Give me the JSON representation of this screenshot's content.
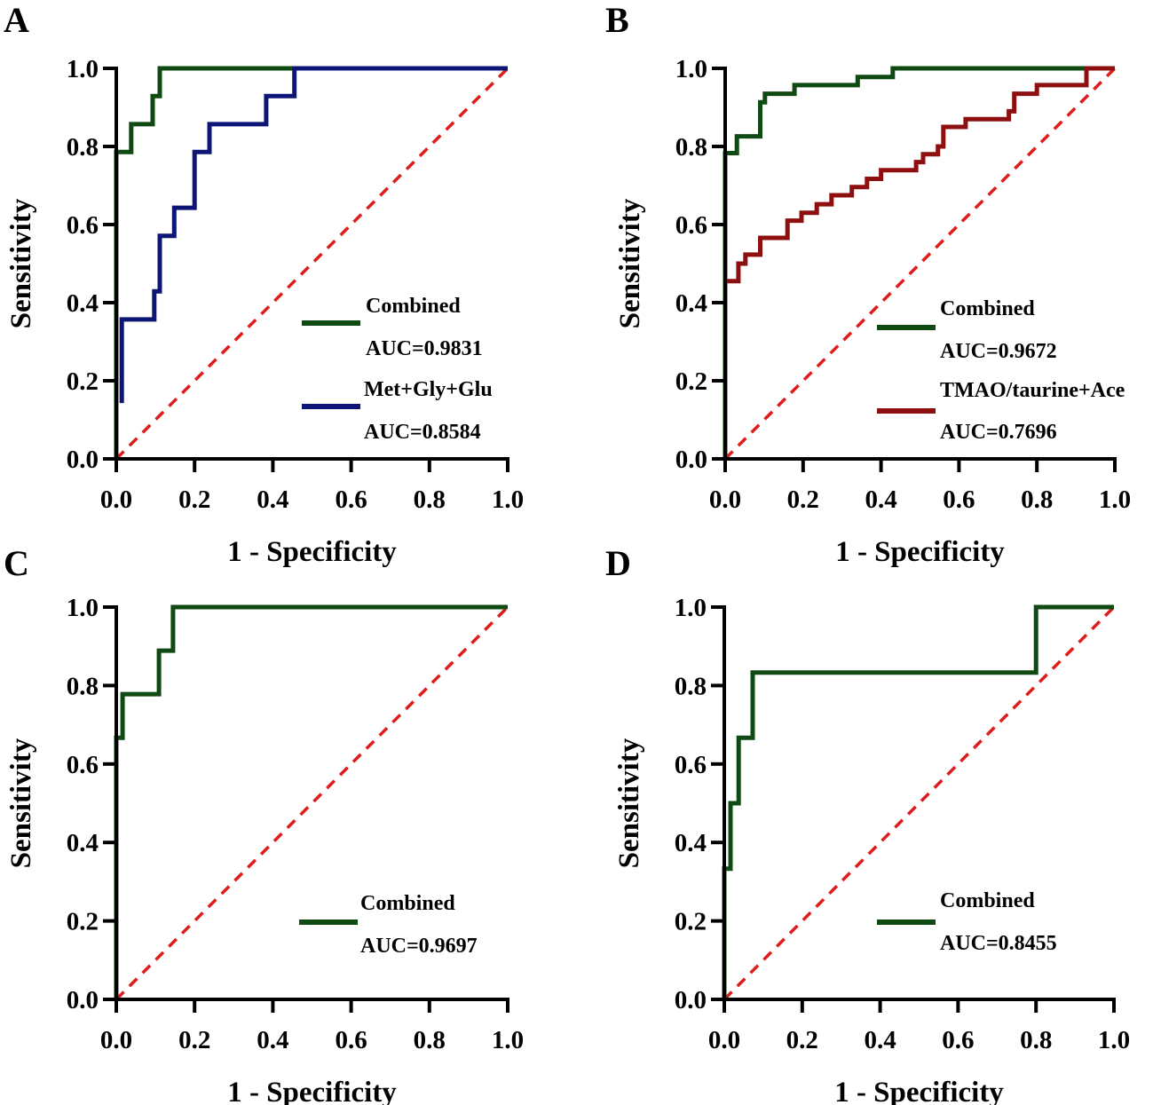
{
  "figure": {
    "colors": {
      "axis": "#000000",
      "combined": "#0e4a12",
      "met_gly_glu": "#0d1577",
      "tmao": "#8e0f0f",
      "reference": "#e01b1b"
    }
  },
  "chart_data": [
    {
      "panel": "A",
      "type": "line",
      "title": "",
      "xlabel": "1 - Specificity",
      "ylabel": "Sensitivity",
      "xlim": [
        0,
        1
      ],
      "ylim": [
        0,
        1
      ],
      "xticks": [
        "0.0",
        "0.2",
        "0.4",
        "0.6",
        "0.8",
        "1.0"
      ],
      "yticks": [
        "0.0",
        "0.2",
        "0.4",
        "0.6",
        "0.8",
        "1.0"
      ],
      "grid": false,
      "legend_position": "bottom-right",
      "reference_line": {
        "x": [
          0,
          1
        ],
        "y": [
          0,
          1
        ],
        "style": "dashed"
      },
      "series": [
        {
          "name": "Combined",
          "auc_label": "AUC=0.9831",
          "color_key": "combined",
          "x": [
            0,
            0,
            0.038,
            0.038,
            0.093,
            0.093,
            0.111,
            0.111,
            1.0
          ],
          "y": [
            0,
            0.786,
            0.786,
            0.857,
            0.857,
            0.929,
            0.929,
            1.0,
            1.0
          ]
        },
        {
          "name": "Met+Gly+Glu",
          "auc_label": "AUC=0.8584",
          "color_key": "met_gly_glu",
          "x": [
            0.014,
            0.014,
            0.014,
            0.097,
            0.097,
            0.111,
            0.111,
            0.148,
            0.148,
            0.2,
            0.2,
            0.238,
            0.238,
            0.383,
            0.383,
            0.455,
            0.455,
            1.0
          ],
          "y": [
            0.143,
            0.143,
            0.357,
            0.357,
            0.429,
            0.429,
            0.571,
            0.571,
            0.643,
            0.643,
            0.786,
            0.786,
            0.857,
            0.857,
            0.929,
            0.929,
            1.0,
            1.0
          ]
        }
      ]
    },
    {
      "panel": "B",
      "type": "line",
      "title": "",
      "xlabel": "1 - Specificity",
      "ylabel": "Sensitivity",
      "xlim": [
        0,
        1
      ],
      "ylim": [
        0,
        1
      ],
      "xticks": [
        "0.0",
        "0.2",
        "0.4",
        "0.6",
        "0.8",
        "1.0"
      ],
      "yticks": [
        "0.0",
        "0.2",
        "0.4",
        "0.6",
        "0.8",
        "1.0"
      ],
      "grid": false,
      "legend_position": "bottom-right",
      "reference_line": {
        "x": [
          0,
          1
        ],
        "y": [
          0,
          1
        ],
        "style": "dashed"
      },
      "series": [
        {
          "name": "Combined",
          "auc_label": "AUC=0.9672",
          "color_key": "combined",
          "x": [
            0,
            0,
            0.03,
            0.03,
            0.09,
            0.09,
            0.102,
            0.102,
            0.178,
            0.178,
            0.34,
            0.34,
            0.43,
            0.43,
            1.0
          ],
          "y": [
            0,
            0.783,
            0.783,
            0.826,
            0.826,
            0.913,
            0.913,
            0.935,
            0.935,
            0.957,
            0.957,
            0.978,
            0.978,
            1.0,
            1.0
          ]
        },
        {
          "name": "TMAO/taurine+Ace",
          "auc_label": "AUC=0.7696",
          "color_key": "tmao",
          "x": [
            0,
            0.034,
            0.034,
            0.052,
            0.052,
            0.09,
            0.09,
            0.16,
            0.16,
            0.196,
            0.196,
            0.235,
            0.235,
            0.273,
            0.273,
            0.325,
            0.325,
            0.364,
            0.364,
            0.4,
            0.4,
            0.49,
            0.49,
            0.508,
            0.508,
            0.546,
            0.546,
            0.56,
            0.56,
            0.617,
            0.617,
            0.728,
            0.728,
            0.742,
            0.742,
            0.8,
            0.8,
            0.927,
            0.927,
            1.0
          ],
          "y": [
            0.455,
            0.455,
            0.5,
            0.5,
            0.523,
            0.523,
            0.566,
            0.566,
            0.61,
            0.61,
            0.63,
            0.63,
            0.652,
            0.652,
            0.675,
            0.675,
            0.696,
            0.696,
            0.717,
            0.717,
            0.739,
            0.739,
            0.76,
            0.76,
            0.78,
            0.78,
            0.8,
            0.8,
            0.85,
            0.85,
            0.87,
            0.87,
            0.89,
            0.89,
            0.935,
            0.935,
            0.957,
            0.957,
            1.0,
            1.0
          ]
        }
      ]
    },
    {
      "panel": "C",
      "type": "line",
      "title": "",
      "xlabel": "1 - Specificity",
      "ylabel": "Sensitivity",
      "xlim": [
        0,
        1
      ],
      "ylim": [
        0,
        1
      ],
      "xticks": [
        "0.0",
        "0.2",
        "0.4",
        "0.6",
        "0.8",
        "1.0"
      ],
      "yticks": [
        "0.0",
        "0.2",
        "0.4",
        "0.6",
        "0.8",
        "1.0"
      ],
      "grid": false,
      "legend_position": "bottom-right",
      "reference_line": {
        "x": [
          0,
          1
        ],
        "y": [
          0,
          1
        ],
        "style": "dashed"
      },
      "series": [
        {
          "name": "Combined",
          "auc_label": "AUC=0.9697",
          "color_key": "combined",
          "x": [
            0,
            0,
            0.016,
            0.016,
            0.109,
            0.109,
            0.145,
            0.145,
            1.0
          ],
          "y": [
            0,
            0.667,
            0.667,
            0.778,
            0.778,
            0.889,
            0.889,
            1.0,
            1.0
          ]
        }
      ]
    },
    {
      "panel": "D",
      "type": "line",
      "title": "",
      "xlabel": "1 - Specificity",
      "ylabel": "Sensitivity",
      "xlim": [
        0,
        1
      ],
      "ylim": [
        0,
        1
      ],
      "xticks": [
        "0.0",
        "0.2",
        "0.4",
        "0.6",
        "0.8",
        "1.0"
      ],
      "yticks": [
        "0.0",
        "0.2",
        "0.4",
        "0.6",
        "0.8",
        "1.0"
      ],
      "grid": false,
      "legend_position": "bottom-right",
      "reference_line": {
        "x": [
          0,
          1
        ],
        "y": [
          0,
          1
        ],
        "style": "dashed"
      },
      "series": [
        {
          "name": "Combined",
          "auc_label": "AUC=0.8455",
          "color_key": "combined",
          "x": [
            0,
            0,
            0.016,
            0.016,
            0.037,
            0.037,
            0.073,
            0.073,
            0.8,
            0.8,
            1.0
          ],
          "y": [
            0,
            0.333,
            0.333,
            0.5,
            0.5,
            0.667,
            0.667,
            0.833,
            0.833,
            1.0,
            1.0
          ]
        }
      ]
    }
  ]
}
